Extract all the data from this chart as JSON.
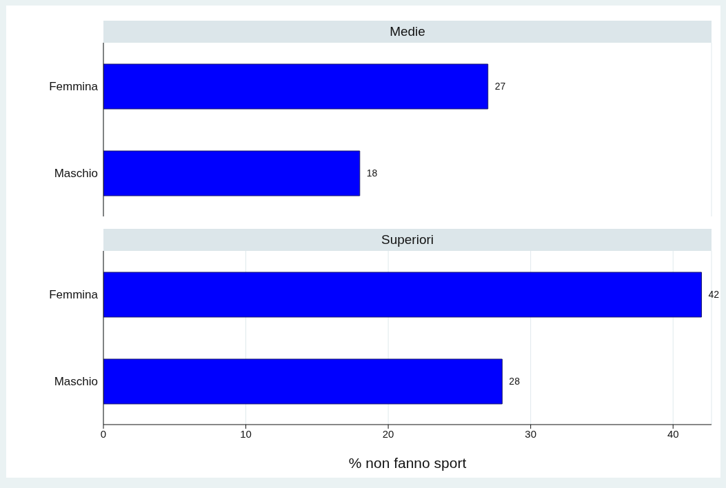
{
  "chart_data": [
    {
      "type": "bar",
      "orientation": "horizontal",
      "title": "Medie",
      "categories": [
        "Femmina",
        "Maschio"
      ],
      "values": [
        27,
        18
      ],
      "color": "#0000ff",
      "data_labels": true,
      "xlim": [
        0,
        42.7
      ],
      "xticks": [
        0,
        10,
        20,
        30,
        40
      ],
      "grid": "x",
      "tick_labels": "y"
    },
    {
      "type": "bar",
      "orientation": "horizontal",
      "title": "Superiori",
      "categories": [
        "Femmina",
        "Maschio"
      ],
      "values": [
        42,
        28
      ],
      "color": "#0000ff",
      "data_labels": true,
      "xlim": [
        0,
        42.7
      ],
      "xticks": [
        0,
        10,
        20,
        30,
        40
      ],
      "grid": "x",
      "xlabel": "% non fanno sport"
    }
  ]
}
